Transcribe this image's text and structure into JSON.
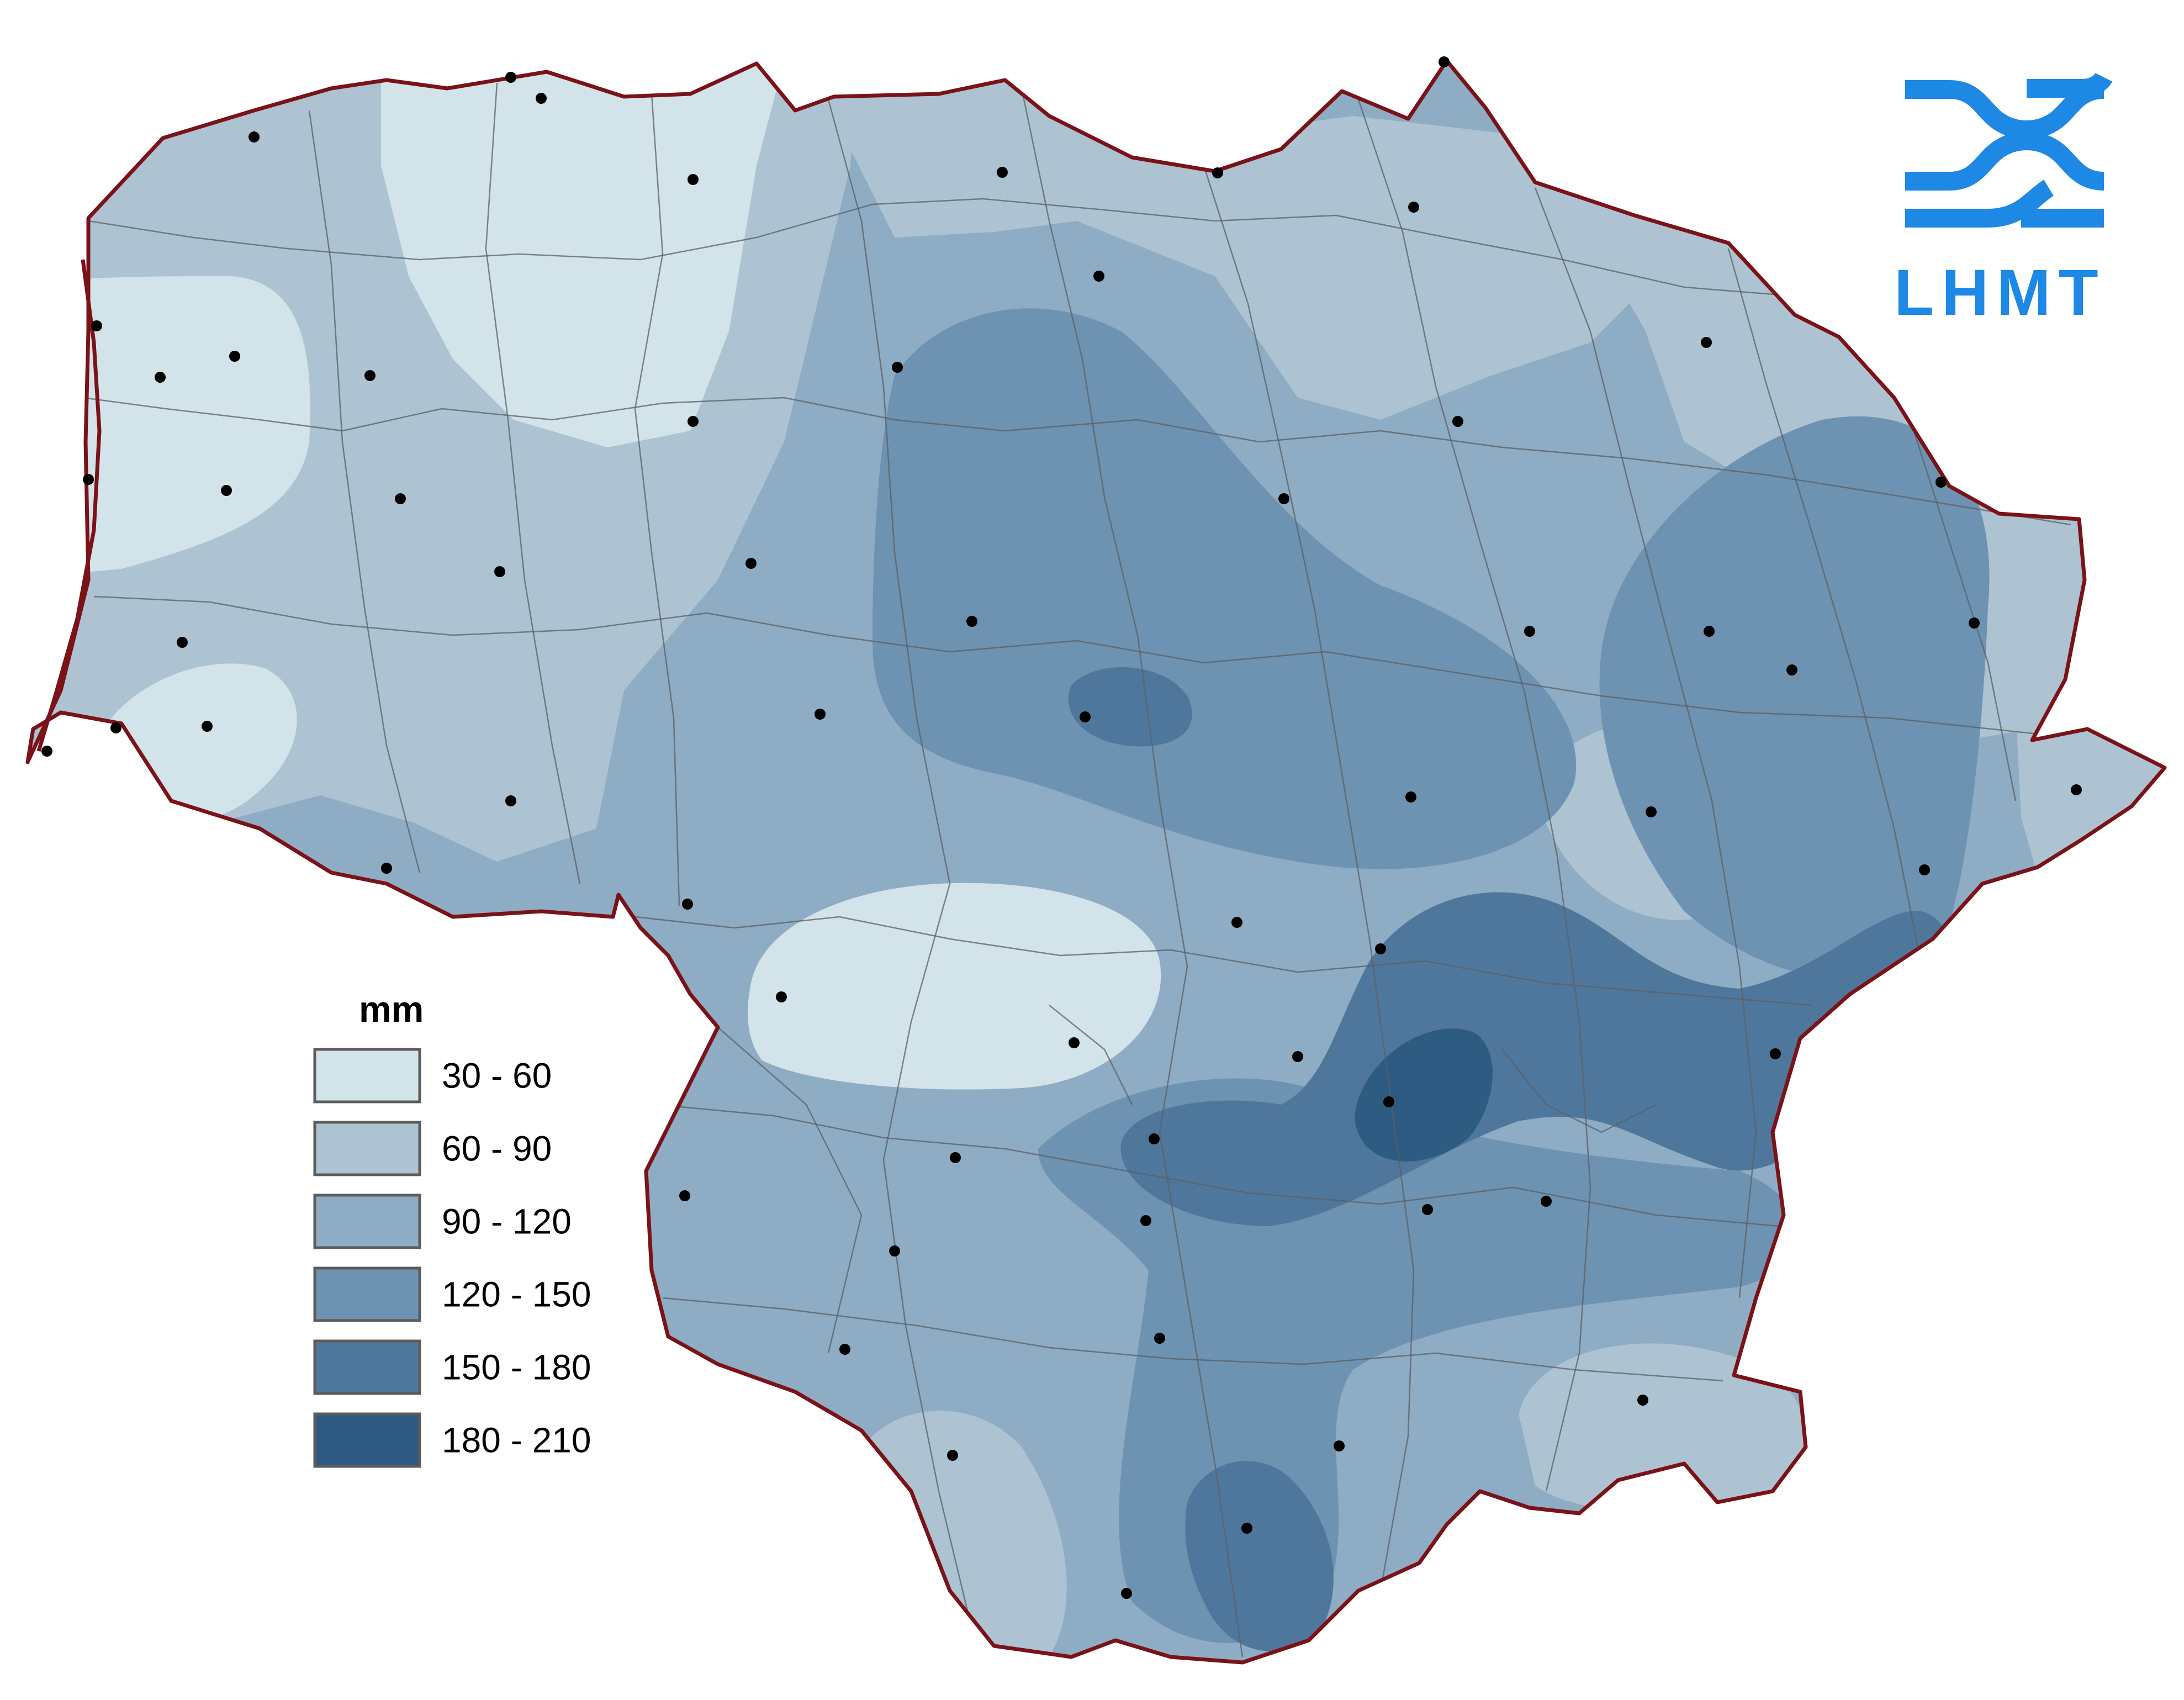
{
  "legend": {
    "unit": "mm",
    "classes": [
      {
        "label": "30 - 60",
        "color": "#d3e3ea"
      },
      {
        "label": "60 - 90",
        "color": "#adc3d2"
      },
      {
        "label": "90 - 120",
        "color": "#8eacc3"
      },
      {
        "label": "120 - 150",
        "color": "#6e92b1"
      },
      {
        "label": "150 - 180",
        "color": "#4f779b"
      },
      {
        "label": "180 - 210",
        "color": "#2e5b82"
      }
    ]
  },
  "logo": {
    "text": "LHMT",
    "color": "#1e88e5"
  },
  "map": {
    "border_color": "#7a1218",
    "station_marker": "black-dot",
    "station_count": 60
  }
}
